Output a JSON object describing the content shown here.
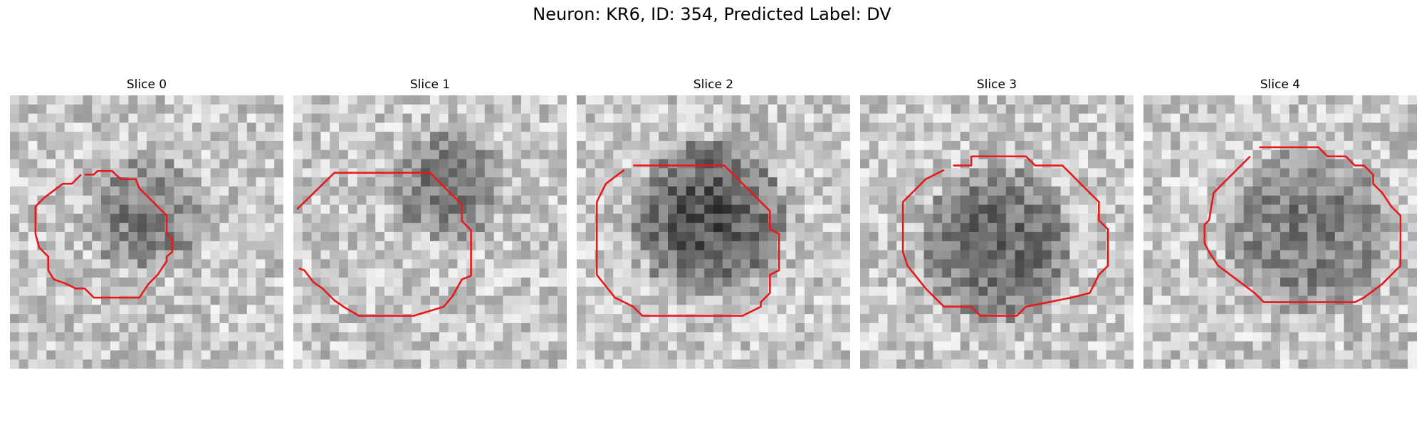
{
  "figure": {
    "title": "Neuron: KR6, ID: 354, Predicted Label: DV"
  },
  "panels": [
    {
      "title": "Slice 0"
    },
    {
      "title": "Slice 1"
    },
    {
      "title": "Slice 2"
    },
    {
      "title": "Slice 3"
    },
    {
      "title": "Slice 4"
    }
  ],
  "style": {
    "contour_color": "#e8191c",
    "colormap": "grayscale"
  }
}
